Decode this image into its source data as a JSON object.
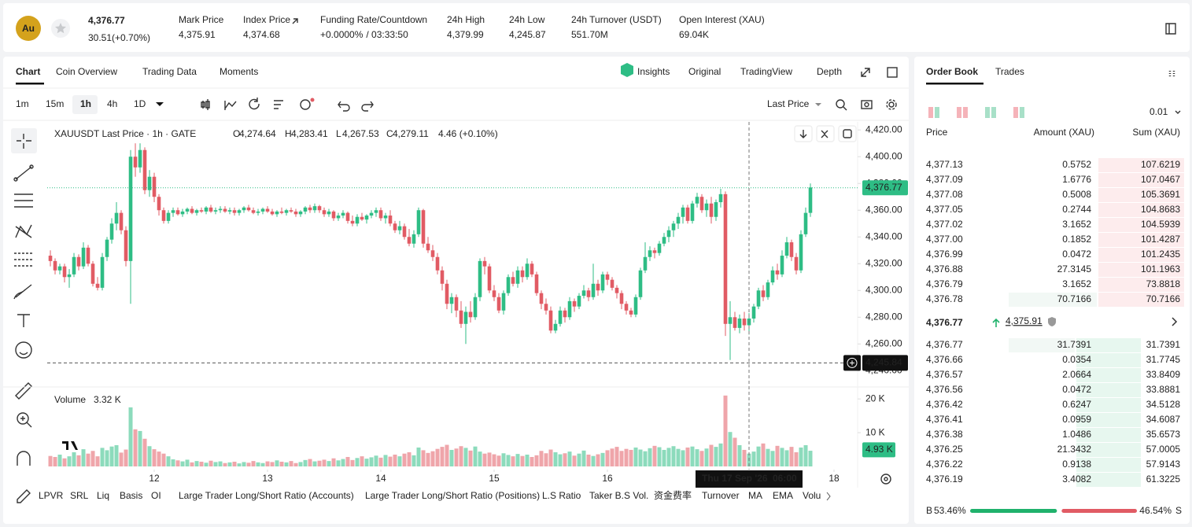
{
  "header": {
    "icon": "Au",
    "last_price": "4,376.77",
    "change": "30.51(+0.70%)",
    "stats": [
      {
        "label": "Mark Price",
        "value": "4,375.91"
      },
      {
        "label": "Index Price",
        "value": "4,374.68"
      },
      {
        "label": "Funding Rate/Countdown",
        "value": "+0.0000%",
        "countdown": "/ 03:33:50"
      },
      {
        "label": "24h High",
        "value": "4,379.99"
      },
      {
        "label": "24h Low",
        "value": "4,245.87"
      },
      {
        "label": "24h Turnover (USDT)",
        "value": "551.70M"
      },
      {
        "label": "Open Interest (XAU)",
        "value": "69.04K"
      }
    ]
  },
  "tabs": [
    "Chart",
    "Coin Overview",
    "Trading Data",
    "Moments"
  ],
  "views": [
    "Insights",
    "Original",
    "TradingView",
    "Depth"
  ],
  "intervals": [
    "1m",
    "15m",
    "1h",
    "4h",
    "1D"
  ],
  "price_type": "Last Price",
  "indicators": [
    "LPVR",
    "SRL",
    "Liq",
    "Basis",
    "OI",
    "Large Trader Long/Short Ratio (Accounts)",
    "Large Trader Long/Short Ratio (Positions)",
    "L.S Ratio",
    "Taker B.S Vol.",
    "资金费率",
    "Turnover",
    "MA",
    "EMA",
    "Volu"
  ],
  "chart": {
    "type": "candlestick",
    "title": "XAUUSDT Last Price · 1h · GATE",
    "ohlc": [
      {
        "key": "O",
        "value": "4,274.64"
      },
      {
        "key": "H",
        "value": "4,283.41"
      },
      {
        "key": "L",
        "value": "4,267.53"
      },
      {
        "key": "C",
        "value": "4,279.11"
      }
    ],
    "ohlc_change": "4.46 (+0.10%)",
    "up_color": "#2ebd85",
    "down_color": "#e15b64",
    "ylim": [
      4229,
      4426
    ],
    "yticks": [
      {
        "value": 4420,
        "label": "4,420.00"
      },
      {
        "value": 4400,
        "label": "4,400.00"
      },
      {
        "value": 4380,
        "label": "4,380.00"
      },
      {
        "value": 4360,
        "label": "4,360.00"
      },
      {
        "value": 4340,
        "label": "4,340.00"
      },
      {
        "value": 4320,
        "label": "4,320.00"
      },
      {
        "value": 4300,
        "label": "4,300.00"
      },
      {
        "value": 4280,
        "label": "4,280.00"
      },
      {
        "value": 4260,
        "label": "4,260.00"
      },
      {
        "value": 4240,
        "label": "4,240.00"
      }
    ],
    "xlim": [
      -0.67,
      171
    ],
    "xticks": [
      {
        "value": 22,
        "label": "12"
      },
      {
        "value": 46,
        "label": "13"
      },
      {
        "value": 70,
        "label": "14"
      },
      {
        "value": 94,
        "label": "15"
      },
      {
        "value": 118,
        "label": "16"
      },
      {
        "value": 166,
        "label": "18"
      }
    ],
    "last_price": {
      "value": 4376.77,
      "label": "4,376.77"
    },
    "low_line": {
      "value": 4245.84,
      "label": "4,245.84"
    },
    "crosshair": {
      "x": 148,
      "date": "Thu 17 Sep '26",
      "time": "06:00"
    },
    "volume_title": "Volume",
    "volume_value": "3.32 K",
    "vlim": [
      0,
      23.3
    ],
    "vticks": [
      {
        "value": 20,
        "label": "20 K"
      },
      {
        "value": 10,
        "label": "10 K"
      }
    ],
    "volume_last": {
      "value": 4.93,
      "label": "4.93 K"
    },
    "candles": [
      [
        4326,
        4330,
        4318,
        4322
      ],
      [
        4322,
        4324,
        4312,
        4315
      ],
      [
        4315,
        4320,
        4312,
        4318
      ],
      [
        4318,
        4320,
        4306,
        4310
      ],
      [
        4310,
        4316,
        4302,
        4312
      ],
      [
        4312,
        4328,
        4310,
        4325
      ],
      [
        4325,
        4327,
        4315,
        4318
      ],
      [
        4318,
        4336,
        4316,
        4332
      ],
      [
        4332,
        4334,
        4318,
        4320
      ],
      [
        4320,
        4322,
        4303,
        4305
      ],
      [
        4305,
        4310,
        4300,
        4302
      ],
      [
        4302,
        4328,
        4300,
        4325
      ],
      [
        4325,
        4340,
        4322,
        4338
      ],
      [
        4338,
        4354,
        4335,
        4350
      ],
      [
        4350,
        4366,
        4345,
        4358
      ],
      [
        4358,
        4360,
        4342,
        4345
      ],
      [
        4345,
        4348,
        4318,
        4322
      ],
      [
        4322,
        4405,
        4290,
        4400
      ],
      [
        4400,
        4410,
        4385,
        4392
      ],
      [
        4392,
        4410,
        4388,
        4405
      ],
      [
        4405,
        4407,
        4372,
        4375
      ],
      [
        4375,
        4390,
        4370,
        4385
      ],
      [
        4385,
        4388,
        4366,
        4370
      ],
      [
        4370,
        4372,
        4356,
        4360
      ],
      [
        4360,
        4362,
        4350,
        4352
      ],
      [
        4352,
        4360,
        4350,
        4358
      ],
      [
        4358,
        4362,
        4355,
        4360
      ],
      [
        4360,
        4362,
        4356,
        4357
      ],
      [
        4357,
        4361,
        4355,
        4359
      ],
      [
        4359,
        4362,
        4357,
        4361
      ],
      [
        4361,
        4363,
        4357,
        4358
      ],
      [
        4358,
        4361,
        4356,
        4360
      ],
      [
        4360,
        4362,
        4358,
        4359
      ],
      [
        4359,
        4363,
        4357,
        4362
      ],
      [
        4362,
        4364,
        4358,
        4359
      ],
      [
        4359,
        4362,
        4357,
        4360
      ],
      [
        4360,
        4363,
        4358,
        4361
      ],
      [
        4361,
        4363,
        4358,
        4359
      ],
      [
        4359,
        4362,
        4357,
        4360
      ],
      [
        4360,
        4362,
        4356,
        4358
      ],
      [
        4358,
        4361,
        4356,
        4360
      ],
      [
        4360,
        4363,
        4358,
        4362
      ],
      [
        4362,
        4364,
        4359,
        4360
      ],
      [
        4360,
        4362,
        4357,
        4358
      ],
      [
        4358,
        4361,
        4356,
        4359
      ],
      [
        4359,
        4362,
        4357,
        4361
      ],
      [
        4361,
        4363,
        4358,
        4359
      ],
      [
        4359,
        4361,
        4356,
        4357
      ],
      [
        4357,
        4360,
        4355,
        4359
      ],
      [
        4359,
        4362,
        4357,
        4358
      ],
      [
        4358,
        4361,
        4356,
        4360
      ],
      [
        4360,
        4362,
        4358,
        4359
      ],
      [
        4359,
        4361,
        4355,
        4357
      ],
      [
        4357,
        4360,
        4355,
        4359
      ],
      [
        4359,
        4363,
        4357,
        4362
      ],
      [
        4362,
        4364,
        4358,
        4360
      ],
      [
        4360,
        4365,
        4358,
        4363
      ],
      [
        4363,
        4364,
        4358,
        4360
      ],
      [
        4360,
        4362,
        4355,
        4357
      ],
      [
        4357,
        4361,
        4355,
        4359
      ],
      [
        4359,
        4360,
        4352,
        4354
      ],
      [
        4354,
        4358,
        4352,
        4356
      ],
      [
        4356,
        4360,
        4354,
        4358
      ],
      [
        4358,
        4359,
        4350,
        4352
      ],
      [
        4352,
        4356,
        4348,
        4350
      ],
      [
        4350,
        4357,
        4348,
        4355
      ],
      [
        4355,
        4358,
        4352,
        4353
      ],
      [
        4353,
        4357,
        4350,
        4356
      ],
      [
        4356,
        4360,
        4354,
        4358
      ],
      [
        4358,
        4362,
        4355,
        4360
      ],
      [
        4360,
        4362,
        4352,
        4354
      ],
      [
        4354,
        4358,
        4350,
        4356
      ],
      [
        4356,
        4360,
        4348,
        4350
      ],
      [
        4350,
        4352,
        4343,
        4345
      ],
      [
        4345,
        4352,
        4342,
        4348
      ],
      [
        4348,
        4350,
        4338,
        4340
      ],
      [
        4340,
        4346,
        4333,
        4335
      ],
      [
        4335,
        4345,
        4332,
        4342
      ],
      [
        4342,
        4362,
        4340,
        4360
      ],
      [
        4360,
        4361,
        4332,
        4335
      ],
      [
        4335,
        4340,
        4328,
        4330
      ],
      [
        4330,
        4334,
        4322,
        4325
      ],
      [
        4325,
        4328,
        4312,
        4315
      ],
      [
        4315,
        4318,
        4300,
        4305
      ],
      [
        4305,
        4308,
        4286,
        4290
      ],
      [
        4290,
        4298,
        4283,
        4295
      ],
      [
        4295,
        4297,
        4280,
        4285
      ],
      [
        4285,
        4292,
        4272,
        4275
      ],
      [
        4275,
        4288,
        4260,
        4284
      ],
      [
        4284,
        4292,
        4276,
        4280
      ],
      [
        4280,
        4298,
        4278,
        4295
      ],
      [
        4295,
        4324,
        4292,
        4322
      ],
      [
        4322,
        4325,
        4312,
        4318
      ],
      [
        4318,
        4320,
        4298,
        4300
      ],
      [
        4300,
        4304,
        4292,
        4295
      ],
      [
        4295,
        4298,
        4283,
        4285
      ],
      [
        4285,
        4300,
        4282,
        4298
      ],
      [
        4298,
        4312,
        4296,
        4310
      ],
      [
        4310,
        4314,
        4303,
        4305
      ],
      [
        4305,
        4318,
        4302,
        4315
      ],
      [
        4315,
        4318,
        4306,
        4310
      ],
      [
        4310,
        4324,
        4308,
        4320
      ],
      [
        4320,
        4322,
        4310,
        4312
      ],
      [
        4312,
        4314,
        4296,
        4298
      ],
      [
        4298,
        4300,
        4286,
        4290
      ],
      [
        4290,
        4294,
        4282,
        4285
      ],
      [
        4285,
        4288,
        4268,
        4270
      ],
      [
        4270,
        4278,
        4268,
        4275
      ],
      [
        4275,
        4288,
        4273,
        4285
      ],
      [
        4285,
        4287,
        4276,
        4280
      ],
      [
        4280,
        4295,
        4278,
        4292
      ],
      [
        4292,
        4294,
        4284,
        4288
      ],
      [
        4288,
        4298,
        4286,
        4296
      ],
      [
        4296,
        4304,
        4294,
        4300
      ],
      [
        4300,
        4302,
        4292,
        4295
      ],
      [
        4295,
        4320,
        4293,
        4305
      ],
      [
        4305,
        4308,
        4296,
        4300
      ],
      [
        4300,
        4314,
        4298,
        4312
      ],
      [
        4312,
        4314,
        4304,
        4308
      ],
      [
        4308,
        4310,
        4300,
        4302
      ],
      [
        4302,
        4304,
        4294,
        4298
      ],
      [
        4298,
        4300,
        4286,
        4290
      ],
      [
        4290,
        4292,
        4282,
        4285
      ],
      [
        4285,
        4287,
        4280,
        4282
      ],
      [
        4282,
        4297,
        4280,
        4295
      ],
      [
        4295,
        4317,
        4293,
        4315
      ],
      [
        4315,
        4336,
        4313,
        4325
      ],
      [
        4325,
        4333,
        4322,
        4330
      ],
      [
        4330,
        4332,
        4324,
        4328
      ],
      [
        4328,
        4337,
        4326,
        4335
      ],
      [
        4335,
        4343,
        4333,
        4340
      ],
      [
        4340,
        4348,
        4336,
        4345
      ],
      [
        4345,
        4352,
        4340,
        4350
      ],
      [
        4350,
        4358,
        4346,
        4355
      ],
      [
        4355,
        4364,
        4350,
        4362
      ],
      [
        4362,
        4364,
        4350,
        4352
      ],
      [
        4352,
        4367,
        4350,
        4365
      ],
      [
        4365,
        4373,
        4362,
        4370
      ],
      [
        4370,
        4372,
        4358,
        4360
      ],
      [
        4360,
        4368,
        4355,
        4365
      ],
      [
        4365,
        4370,
        4350,
        4355
      ],
      [
        4355,
        4368,
        4352,
        4366
      ],
      [
        4366,
        4376,
        4362,
        4372
      ],
      [
        4372,
        4374,
        4266,
        4275
      ],
      [
        4275,
        4292,
        4248,
        4280
      ],
      [
        4280,
        4284,
        4270,
        4272
      ],
      [
        4272,
        4282,
        4268,
        4279
      ],
      [
        4279,
        4284,
        4270,
        4274
      ],
      [
        4274,
        4283,
        4267,
        4279
      ],
      [
        4279,
        4290,
        4276,
        4288
      ],
      [
        4288,
        4302,
        4286,
        4300
      ],
      [
        4300,
        4304,
        4292,
        4295
      ],
      [
        4295,
        4308,
        4293,
        4306
      ],
      [
        4306,
        4318,
        4304,
        4315
      ],
      [
        4315,
        4320,
        4308,
        4312
      ],
      [
        4312,
        4330,
        4310,
        4326
      ],
      [
        4326,
        4340,
        4324,
        4336
      ],
      [
        4336,
        4338,
        4322,
        4325
      ],
      [
        4325,
        4328,
        4312,
        4315
      ],
      [
        4315,
        4345,
        4313,
        4342
      ],
      [
        4342,
        4362,
        4340,
        4358
      ],
      [
        4358,
        4380,
        4355,
        4377
      ]
    ],
    "volumes": [
      3.1,
      2.8,
      3.5,
      2.4,
      3.0,
      4.2,
      3.3,
      5.1,
      3.8,
      4.6,
      3.0,
      5.5,
      4.8,
      5.9,
      6.3,
      4.1,
      5.0,
      17.5,
      11,
      10.5,
      8.2,
      6.0,
      5.1,
      4.4,
      3.8,
      3.0,
      2.1,
      1.8,
      1.5,
      2.0,
      1.2,
      1.6,
      1.4,
      1.1,
      1.7,
      1.3,
      1.5,
      1.0,
      1.2,
      1.4,
      0.9,
      1.3,
      1.1,
      1.6,
      1.2,
      1.0,
      1.5,
      1.3,
      1.8,
      1.4,
      1.2,
      1.6,
      1.0,
      1.3,
      1.9,
      2.2,
      1.5,
      1.7,
      2.0,
      1.6,
      2.4,
      1.8,
      2.2,
      2.8,
      1.9,
      2.5,
      3.0,
      2.3,
      2.7,
      3.2,
      2.6,
      3.4,
      2.9,
      3.5,
      3.0,
      3.8,
      4.2,
      3.3,
      5.6,
      4.8,
      4.0,
      4.5,
      5.2,
      5.8,
      6.4,
      4.9,
      5.3,
      6.0,
      5.5,
      4.7,
      5.9,
      4.4,
      3.8,
      4.1,
      3.6,
      3.2,
      3.9,
      3.4,
      3.0,
      3.7,
      3.1,
      3.5,
      2.8,
      3.3,
      4.6,
      3.9,
      5.0,
      4.2,
      3.6,
      3.9,
      4.4,
      3.2,
      3.8,
      4.7,
      3.5,
      3.1,
      3.6,
      4.0,
      4.8,
      5.3,
      5.8,
      4.6,
      5.2,
      4.9,
      5.6,
      5.0,
      4.5,
      5.4,
      6.1,
      5.7,
      4.9,
      5.5,
      6.0,
      5.2,
      4.8,
      5.6,
      5.9,
      5.1,
      4.6,
      5.3,
      6.4,
      5.8,
      6.8,
      21.0,
      10.2,
      8.5,
      6.3,
      4.9,
      3.8,
      4.4,
      5.9,
      6.8,
      5.2,
      4.6,
      6.1,
      5.5,
      4.8,
      5.8,
      4.2,
      5.6,
      6.3,
      4.65
    ]
  },
  "order_book": {
    "tabs": [
      "Order Book",
      "Trades"
    ],
    "precision": "0.01",
    "headers": [
      "Price",
      "Amount (XAU)",
      "Sum (XAU)"
    ],
    "asks": [
      [
        "4,377.13",
        "0.5752",
        "107.6219"
      ],
      [
        "4,377.09",
        "1.6776",
        "107.0467"
      ],
      [
        "4,377.08",
        "0.5008",
        "105.3691"
      ],
      [
        "4,377.05",
        "0.2744",
        "104.8683"
      ],
      [
        "4,377.02",
        "3.1652",
        "104.5939"
      ],
      [
        "4,377.00",
        "0.1852",
        "101.4287"
      ],
      [
        "4,376.99",
        "0.0472",
        "101.2435"
      ],
      [
        "4,376.88",
        "27.3145",
        "101.1963"
      ],
      [
        "4,376.79",
        "3.1652",
        "73.8818"
      ],
      [
        "4,376.78",
        "70.7166",
        "70.7166"
      ]
    ],
    "mid_price": "4,376.77",
    "mark_price": "4,375.91",
    "bids": [
      [
        "4,376.77",
        "31.7391",
        "31.7391"
      ],
      [
        "4,376.66",
        "0.0354",
        "31.7745"
      ],
      [
        "4,376.57",
        "2.0664",
        "33.8409"
      ],
      [
        "4,376.56",
        "0.0472",
        "33.8881"
      ],
      [
        "4,376.42",
        "0.6247",
        "34.5128"
      ],
      [
        "4,376.41",
        "0.0959",
        "34.6087"
      ],
      [
        "4,376.38",
        "1.0486",
        "35.6573"
      ],
      [
        "4,376.25",
        "21.3432",
        "57.0005"
      ],
      [
        "4,376.22",
        "0.9138",
        "57.9143"
      ],
      [
        "4,376.19",
        "3.4082",
        "61.3225"
      ]
    ],
    "ratio": {
      "buy_letter": "B",
      "buy": 53.46,
      "buy_label": "53.46%",
      "sell": 46.54,
      "sell_label": "46.54%",
      "sell_letter": "S"
    }
  }
}
